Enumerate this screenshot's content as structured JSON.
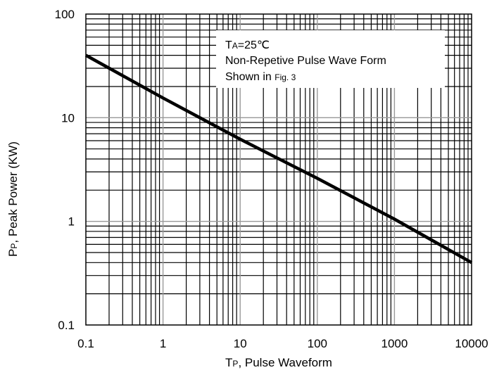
{
  "chart_data": {
    "type": "line",
    "x_scale": "log",
    "y_scale": "log",
    "xlim": [
      0.1,
      10000
    ],
    "ylim": [
      0.1,
      100
    ],
    "x_ticks": [
      "0.1",
      "1",
      "10",
      "100",
      "1000",
      "10000"
    ],
    "y_ticks": [
      "0.1",
      "1",
      "10",
      "100"
    ],
    "grid": true,
    "xlabel": {
      "main": "T",
      "sub": "P",
      "rest": ", Pulse Waveform"
    },
    "ylabel": {
      "main": "P",
      "sub": "P",
      "rest": ", Peak Power  (KW)"
    },
    "annotation": {
      "line1_main": "T",
      "line1_sub": "A",
      "line1_rest": "=25℃",
      "line2": "Non-Repetive Pulse Wave Form",
      "line3_main": "Shown in ",
      "line3_small": "Fig. 3"
    },
    "series": [
      {
        "x": [
          0.1,
          1,
          10,
          100,
          1000,
          10000
        ],
        "y": [
          40,
          15.5,
          6.2,
          2.6,
          1.05,
          0.4
        ]
      }
    ]
  },
  "colors": {
    "grid": "#000000",
    "grid_major": "#999999",
    "line": "#000000",
    "background": "#ffffff"
  }
}
